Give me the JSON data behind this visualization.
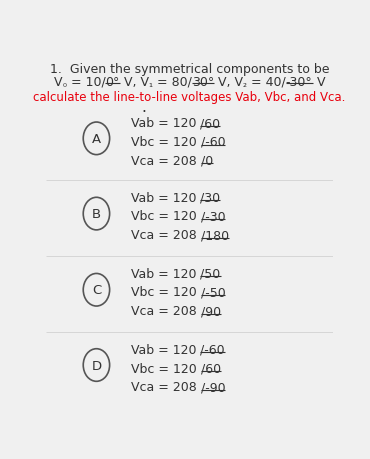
{
  "title_line1": "1.  Given the symmetrical components to be",
  "subtitle": "calculate the line-to-line voltages Vab, Vbc, and Vca.",
  "subtitle_color": "#e8000d",
  "bg_color": "#f0f0f0",
  "options": [
    {
      "label": "A",
      "lines": [
        {
          "prefix": "Vab = 120 ",
          "angle": "/60"
        },
        {
          "prefix": "Vbc = 120 ",
          "angle": "/-60"
        },
        {
          "prefix": "Vca = 208 ",
          "angle": "/0"
        }
      ]
    },
    {
      "label": "B",
      "lines": [
        {
          "prefix": "Vab = 120 ",
          "angle": "/30"
        },
        {
          "prefix": "Vbc = 120 ",
          "angle": "/-30"
        },
        {
          "prefix": "Vca = 208 ",
          "angle": "/180"
        }
      ]
    },
    {
      "label": "C",
      "lines": [
        {
          "prefix": "Vab = 120 ",
          "angle": "/50"
        },
        {
          "prefix": "Vbc = 120 ",
          "angle": "/-50"
        },
        {
          "prefix": "Vca = 208 ",
          "angle": "/90"
        }
      ]
    },
    {
      "label": "D",
      "lines": [
        {
          "prefix": "Vab = 120 ",
          "angle": "/-60"
        },
        {
          "prefix": "Vbc = 120 ",
          "angle": "/60"
        },
        {
          "prefix": "Vca = 208 ",
          "angle": "/-90"
        }
      ]
    }
  ],
  "text_color": "#333333",
  "font_size": 9
}
